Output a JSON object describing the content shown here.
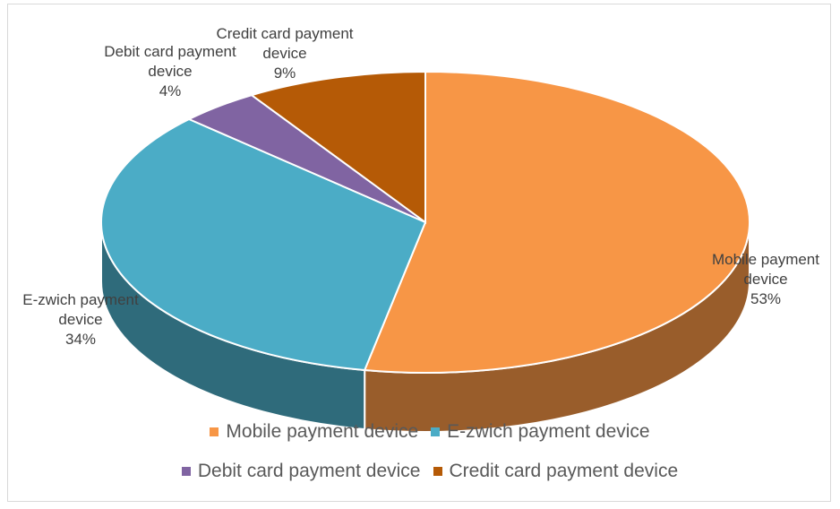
{
  "chart_data": {
    "type": "pie",
    "categories": [
      "Mobile payment device",
      "E-zwich payment device",
      "Debit card payment device",
      "Credit card payment device"
    ],
    "values": [
      53,
      34,
      4,
      9
    ],
    "value_labels": [
      "53%",
      "34%",
      "4%",
      "9%"
    ],
    "colors": [
      "#f79646",
      "#4bacc6",
      "#8064a2",
      "#b55a06"
    ],
    "legend": "bottom"
  }
}
